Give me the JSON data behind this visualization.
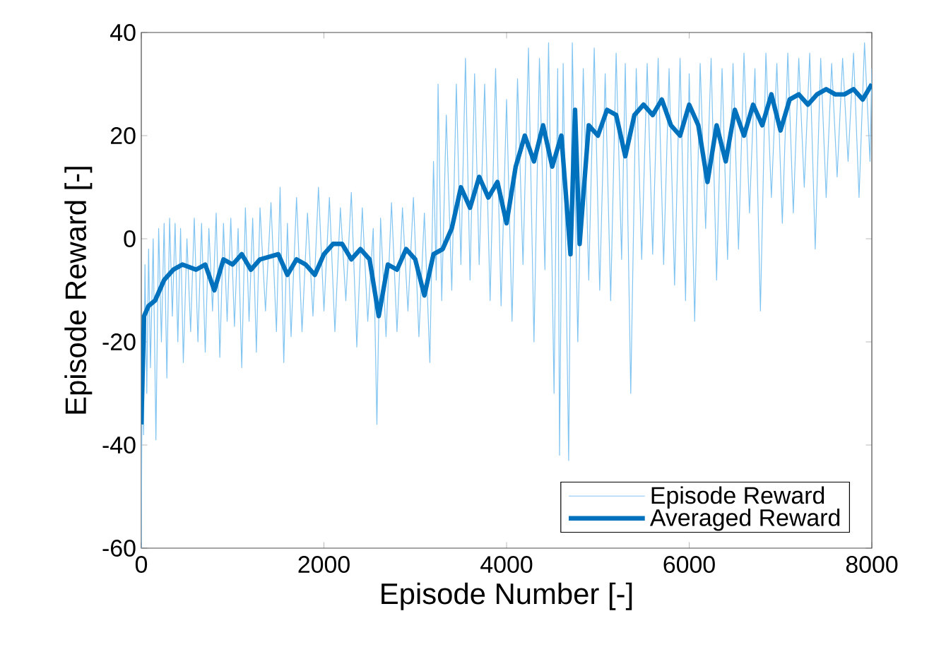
{
  "chart_data": {
    "type": "line",
    "xlabel": "Episode Number [-]",
    "ylabel": "Episode Reward [-]",
    "xlim": [
      0,
      8000
    ],
    "xticks": [
      0,
      2000,
      4000,
      6000,
      8000
    ],
    "ylim": [
      -60,
      40
    ],
    "yticks": [
      -60,
      -40,
      -20,
      0,
      20,
      40
    ],
    "legend": "bottom right",
    "grid": false,
    "series": [
      {
        "name": "Episode Reward",
        "color": "#80c4f2",
        "line_style": "solid",
        "x": [
          0,
          10,
          25,
          40,
          60,
          80,
          100,
          130,
          160,
          190,
          220,
          250,
          280,
          310,
          340,
          370,
          400,
          430,
          460,
          500,
          540,
          580,
          620,
          660,
          700,
          740,
          780,
          820,
          860,
          900,
          940,
          980,
          1020,
          1060,
          1100,
          1140,
          1180,
          1220,
          1260,
          1300,
          1360,
          1420,
          1480,
          1520,
          1560,
          1600,
          1640,
          1700,
          1760,
          1820,
          1880,
          1940,
          2000,
          2060,
          2120,
          2180,
          2240,
          2300,
          2360,
          2420,
          2480,
          2540,
          2580,
          2620,
          2680,
          2740,
          2800,
          2860,
          2920,
          2980,
          3040,
          3100,
          3160,
          3200,
          3230,
          3250,
          3290,
          3340,
          3400,
          3450,
          3500,
          3550,
          3600,
          3650,
          3700,
          3760,
          3820,
          3880,
          3940,
          4000,
          4060,
          4120,
          4180,
          4240,
          4300,
          4360,
          4420,
          4460,
          4520,
          4560,
          4580,
          4620,
          4680,
          4720,
          4780,
          4840,
          4900,
          4960,
          5020,
          5080,
          5140,
          5200,
          5260,
          5300,
          5360,
          5420,
          5480,
          5540,
          5600,
          5660,
          5720,
          5780,
          5840,
          5900,
          5960,
          6000,
          6060,
          6120,
          6180,
          6240,
          6300,
          6360,
          6420,
          6480,
          6540,
          6600,
          6660,
          6720,
          6780,
          6840,
          6900,
          6960,
          7020,
          7080,
          7140,
          7200,
          7260,
          7320,
          7380,
          7440,
          7500,
          7560,
          7620,
          7680,
          7740,
          7800,
          7860,
          7920,
          7980,
          8000
        ],
        "values": [
          -60,
          -20,
          -38,
          -5,
          -30,
          -2,
          -25,
          0,
          -39,
          2,
          -20,
          3,
          -27,
          4,
          -15,
          3,
          -20,
          2,
          -24,
          0,
          -18,
          4,
          -20,
          3,
          -22,
          2,
          -14,
          5,
          -23,
          3,
          -16,
          4,
          -17,
          2,
          -25,
          6,
          -16,
          4,
          -22,
          6,
          -14,
          7,
          -18,
          10,
          -24,
          3,
          -19,
          8,
          -18,
          5,
          -15,
          10,
          -14,
          8,
          -18,
          6,
          -12,
          9,
          -21,
          6,
          -16,
          2,
          -36,
          4,
          -19,
          7,
          -18,
          6,
          -14,
          8,
          -19,
          5,
          -24,
          15,
          -8,
          30,
          -12,
          24,
          -10,
          30,
          -5,
          35,
          -8,
          32,
          -5,
          30,
          -12,
          33,
          -13,
          27,
          -16,
          31,
          -5,
          37,
          -20,
          35,
          -6,
          38,
          -30,
          33,
          -42,
          34,
          -43,
          38,
          -20,
          33,
          -8,
          37,
          -10,
          32,
          -12,
          36,
          -4,
          34,
          -30,
          33,
          -4,
          34,
          -3,
          35,
          -5,
          33,
          -9,
          35,
          -12,
          32,
          -16,
          34,
          2,
          35,
          -8,
          33,
          -4,
          34,
          -2,
          36,
          5,
          33,
          -14,
          36,
          8,
          34,
          3,
          36,
          5,
          35,
          10,
          36,
          -2,
          35,
          8,
          34,
          12,
          35,
          15,
          36,
          8,
          38,
          15,
          33
        ]
      },
      {
        "name": "Averaged Reward",
        "color": "#0072bd",
        "line_style": "solid",
        "x": [
          0,
          30,
          80,
          150,
          250,
          350,
          450,
          600,
          700,
          800,
          900,
          1000,
          1100,
          1200,
          1300,
          1500,
          1600,
          1700,
          1800,
          1900,
          2000,
          2100,
          2200,
          2300,
          2400,
          2500,
          2600,
          2700,
          2800,
          2900,
          3000,
          3100,
          3200,
          3300,
          3400,
          3500,
          3600,
          3700,
          3800,
          3900,
          4000,
          4100,
          4200,
          4300,
          4400,
          4500,
          4600,
          4700,
          4750,
          4800,
          4900,
          5000,
          5100,
          5200,
          5300,
          5400,
          5500,
          5600,
          5700,
          5800,
          5900,
          6000,
          6100,
          6200,
          6300,
          6400,
          6500,
          6600,
          6700,
          6800,
          6900,
          7000,
          7100,
          7200,
          7300,
          7400,
          7500,
          7600,
          7700,
          7800,
          7900,
          8000
        ],
        "values": [
          -36,
          -15,
          -13,
          -12,
          -8,
          -6,
          -5,
          -6,
          -5,
          -10,
          -4,
          -5,
          -3,
          -6,
          -4,
          -3,
          -7,
          -4,
          -5,
          -7,
          -3,
          -1,
          -1,
          -4,
          -2,
          -4,
          -15,
          -5,
          -6,
          -2,
          -4,
          -11,
          -3,
          -2,
          2,
          10,
          6,
          12,
          8,
          11,
          3,
          14,
          20,
          15,
          22,
          14,
          20,
          -3,
          25,
          -1,
          22,
          20,
          25,
          24,
          16,
          24,
          26,
          24,
          27,
          22,
          20,
          26,
          22,
          11,
          22,
          15,
          25,
          20,
          26,
          22,
          28,
          21,
          27,
          28,
          26,
          28,
          29,
          28,
          28,
          29,
          27,
          30
        ]
      }
    ]
  }
}
